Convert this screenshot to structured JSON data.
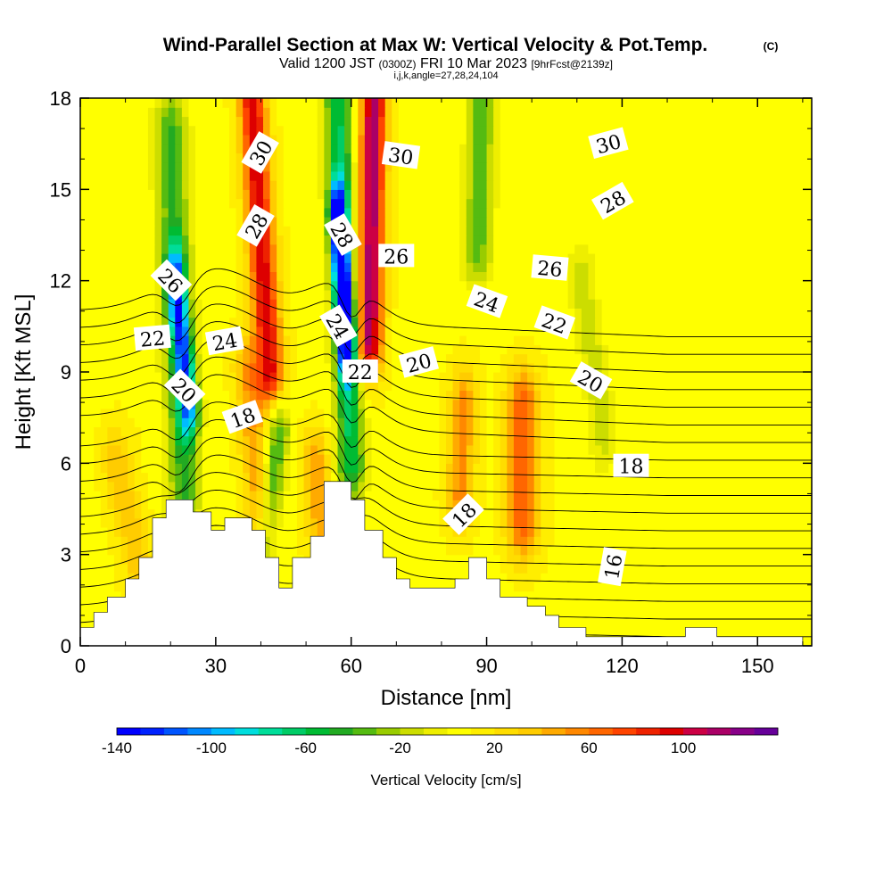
{
  "chart_data": {
    "type": "heatmap",
    "title": "Wind-Parallel Section at Max W: Vertical Velocity & Pot.Temp.",
    "title_unit": "(C)",
    "subtitle_main_a": "Valid 1200 JST",
    "subtitle_small_a": "(0300Z)",
    "subtitle_main_b": "FRI 10 Mar 2023",
    "subtitle_small_b": "[9hrFcst@2139z]",
    "subtitle_line2": "i,j,k,angle=27,28,24,104",
    "xlabel": "Distance [nm]",
    "ylabel": "Height [Kft MSL]",
    "xlim": [
      0,
      162
    ],
    "ylim": [
      0,
      18
    ],
    "x_ticks": [
      "0",
      "30",
      "60",
      "90",
      "120",
      "150"
    ],
    "y_ticks": [
      "0",
      "3",
      "6",
      "9",
      "12",
      "15",
      "18"
    ],
    "colorbar": {
      "label": "Vertical Velocity [cm/s]",
      "range": [
        -140,
        140
      ],
      "tick_labels": [
        "-140",
        "-100",
        "-60",
        "-20",
        "20",
        "60",
        "100"
      ],
      "colors": [
        "#0000ff",
        "#0022ff",
        "#0055ff",
        "#0088ff",
        "#00bbff",
        "#00dddd",
        "#00dd99",
        "#00cc66",
        "#00bb33",
        "#22aa22",
        "#55bb11",
        "#99cc00",
        "#ccdd00",
        "#eeee00",
        "#ffff00",
        "#ffee00",
        "#ffdd00",
        "#ffcc00",
        "#ffaa00",
        "#ff8800",
        "#ff6600",
        "#ff4400",
        "#ee2200",
        "#dd0000",
        "#cc0044",
        "#aa0066",
        "#880088",
        "#660099"
      ]
    },
    "background_w": 8,
    "w_features": [
      {
        "x0": 20,
        "x1": 23,
        "y0": 17,
        "y1": 5,
        "w": -50,
        "width": 3.5
      },
      {
        "x0": 21,
        "x1": 24,
        "y0": 12,
        "y1": 8,
        "w": -90,
        "width": 2.2
      },
      {
        "x0": 38,
        "x1": 42,
        "y0": 18,
        "y1": 9,
        "w": 90,
        "width": 3.0
      },
      {
        "x0": 37,
        "x1": 40,
        "y0": 9,
        "y1": 4,
        "w": 40,
        "width": 3.0
      },
      {
        "x0": 44,
        "x1": 41,
        "y0": 7,
        "y1": 3.5,
        "w": -50,
        "width": 2.5
      },
      {
        "x0": 57,
        "x1": 60,
        "y0": 18,
        "y1": 6,
        "w": -70,
        "width": 3.0
      },
      {
        "x0": 57,
        "x1": 59,
        "y0": 14,
        "y1": 10,
        "w": -130,
        "width": 1.8
      },
      {
        "x0": 65,
        "x1": 64,
        "y0": 18,
        "y1": 10,
        "w": 110,
        "width": 2.8
      },
      {
        "x0": 85,
        "x1": 84,
        "y0": 8,
        "y1": 5,
        "w": 45,
        "width": 3.0
      },
      {
        "x0": 98,
        "x1": 98,
        "y0": 8,
        "y1": 4,
        "w": 60,
        "width": 3.5
      },
      {
        "x0": 89,
        "x1": 88,
        "y0": 18,
        "y1": 13,
        "w": -45,
        "width": 3.0
      },
      {
        "x0": 111,
        "x1": 116,
        "y0": 12,
        "y1": 7,
        "w": -25,
        "width": 3.0
      },
      {
        "x0": 8,
        "x1": 14,
        "y0": 6,
        "y1": 2,
        "w": 30,
        "width": 3.5
      },
      {
        "x0": 52,
        "x1": 54,
        "y0": 6,
        "y1": 3,
        "w": 40,
        "width": 3.0
      }
    ],
    "terrain": [
      [
        0,
        0.6
      ],
      [
        3,
        0.6
      ],
      [
        3,
        1.1
      ],
      [
        6,
        1.1
      ],
      [
        6,
        1.6
      ],
      [
        10,
        1.6
      ],
      [
        10,
        2.2
      ],
      [
        13,
        2.2
      ],
      [
        13,
        2.9
      ],
      [
        16,
        2.9
      ],
      [
        16,
        4.2
      ],
      [
        19,
        4.2
      ],
      [
        19,
        4.8
      ],
      [
        25,
        4.8
      ],
      [
        25,
        4.4
      ],
      [
        29,
        4.4
      ],
      [
        29,
        3.8
      ],
      [
        32,
        3.8
      ],
      [
        32,
        4.2
      ],
      [
        38,
        4.2
      ],
      [
        38,
        3.8
      ],
      [
        41,
        3.8
      ],
      [
        41,
        2.9
      ],
      [
        44,
        2.9
      ],
      [
        44,
        1.9
      ],
      [
        47,
        1.9
      ],
      [
        47,
        2.9
      ],
      [
        51,
        2.9
      ],
      [
        51,
        3.6
      ],
      [
        54,
        3.6
      ],
      [
        54,
        5.4
      ],
      [
        60,
        5.4
      ],
      [
        60,
        4.8
      ],
      [
        63,
        4.8
      ],
      [
        63,
        3.8
      ],
      [
        67,
        3.8
      ],
      [
        67,
        2.9
      ],
      [
        70,
        2.9
      ],
      [
        70,
        2.2
      ],
      [
        73,
        2.2
      ],
      [
        73,
        1.9
      ],
      [
        83,
        1.9
      ],
      [
        83,
        2.2
      ],
      [
        86,
        2.2
      ],
      [
        86,
        2.9
      ],
      [
        90,
        2.9
      ],
      [
        90,
        2.2
      ],
      [
        93,
        2.2
      ],
      [
        93,
        1.6
      ],
      [
        99,
        1.6
      ],
      [
        99,
        1.3
      ],
      [
        103,
        1.3
      ],
      [
        103,
        1.0
      ],
      [
        106,
        1.0
      ],
      [
        106,
        0.6
      ],
      [
        112,
        0.6
      ],
      [
        112,
        0.3
      ],
      [
        134,
        0.3
      ],
      [
        134,
        0.6
      ],
      [
        141,
        0.6
      ],
      [
        141,
        0.3
      ],
      [
        160,
        0.3
      ],
      [
        160,
        0.0
      ]
    ],
    "contour_labels": [
      {
        "text": "30",
        "x": 40,
        "y": 16.2,
        "angle": -60
      },
      {
        "text": "30",
        "x": 71,
        "y": 16.1,
        "angle": 8
      },
      {
        "text": "30",
        "x": 117,
        "y": 16.5,
        "angle": -15
      },
      {
        "text": "28",
        "x": 39,
        "y": 13.8,
        "angle": -60
      },
      {
        "text": "28",
        "x": 58,
        "y": 13.5,
        "angle": 60
      },
      {
        "text": "28",
        "x": 118,
        "y": 14.6,
        "angle": -30
      },
      {
        "text": "26",
        "x": 20,
        "y": 12.0,
        "angle": 45
      },
      {
        "text": "26",
        "x": 70,
        "y": 12.8,
        "angle": 0
      },
      {
        "text": "26",
        "x": 104,
        "y": 12.4,
        "angle": 5
      },
      {
        "text": "24",
        "x": 32,
        "y": 10.0,
        "angle": -10
      },
      {
        "text": "24",
        "x": 57,
        "y": 10.5,
        "angle": 60
      },
      {
        "text": "24",
        "x": 90,
        "y": 11.3,
        "angle": 20
      },
      {
        "text": "22",
        "x": 16,
        "y": 10.1,
        "angle": -5
      },
      {
        "text": "22",
        "x": 62,
        "y": 9.0,
        "angle": 0
      },
      {
        "text": "22",
        "x": 105,
        "y": 10.6,
        "angle": 20
      },
      {
        "text": "20",
        "x": 23,
        "y": 8.4,
        "angle": 45
      },
      {
        "text": "20",
        "x": 75,
        "y": 9.3,
        "angle": -15
      },
      {
        "text": "20",
        "x": 113,
        "y": 8.7,
        "angle": 30
      },
      {
        "text": "18",
        "x": 36,
        "y": 7.5,
        "angle": -20
      },
      {
        "text": "18",
        "x": 85,
        "y": 4.3,
        "angle": -45
      },
      {
        "text": "18",
        "x": 122,
        "y": 5.9,
        "angle": 0
      },
      {
        "text": "16",
        "x": 118,
        "y": 2.6,
        "angle": -80
      }
    ]
  }
}
